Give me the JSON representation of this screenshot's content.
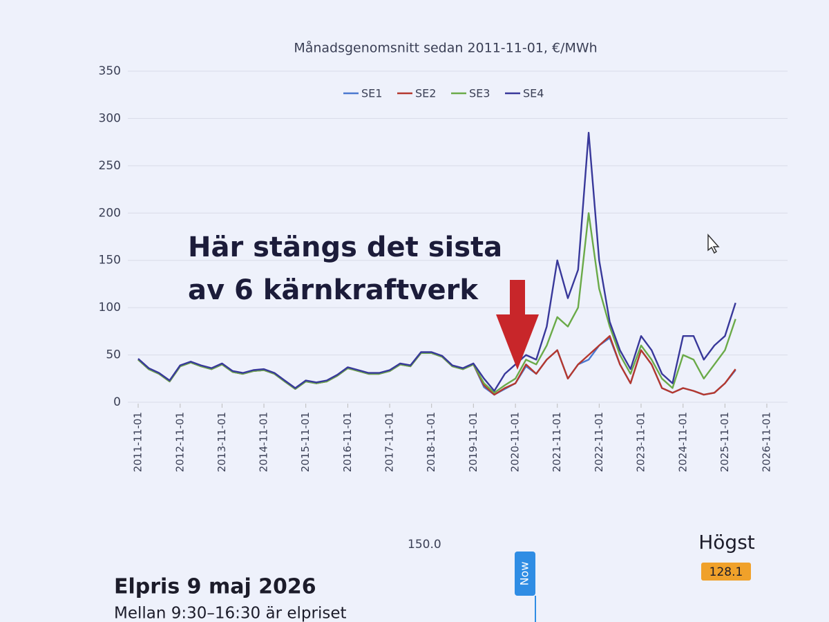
{
  "chart_data": {
    "type": "line",
    "title": "Månadsgenomsnitt sedan 2011-11-01, €/MWh",
    "annotation": [
      "Här stängs det sista",
      "av 6 kärnkraftverk"
    ],
    "x": [
      "2011-11-01",
      "2012-02-01",
      "2012-05-01",
      "2012-08-01",
      "2012-11-01",
      "2013-02-01",
      "2013-05-01",
      "2013-08-01",
      "2013-11-01",
      "2014-02-01",
      "2014-05-01",
      "2014-08-01",
      "2014-11-01",
      "2015-02-01",
      "2015-05-01",
      "2015-08-01",
      "2015-11-01",
      "2016-02-01",
      "2016-05-01",
      "2016-08-01",
      "2016-11-01",
      "2017-02-01",
      "2017-05-01",
      "2017-08-01",
      "2017-11-01",
      "2018-02-01",
      "2018-05-01",
      "2018-08-01",
      "2018-11-01",
      "2019-02-01",
      "2019-05-01",
      "2019-08-01",
      "2019-11-01",
      "2020-02-01",
      "2020-05-01",
      "2020-08-01",
      "2020-11-01",
      "2021-02-01",
      "2021-05-01",
      "2021-08-01",
      "2021-11-01",
      "2022-02-01",
      "2022-05-01",
      "2022-08-01",
      "2022-11-01",
      "2023-02-01",
      "2023-05-01",
      "2023-08-01",
      "2023-11-01",
      "2024-02-01",
      "2024-05-01",
      "2024-08-01",
      "2024-11-01",
      "2025-02-01",
      "2025-05-01",
      "2025-08-01",
      "2025-11-01",
      "2026-02-01"
    ],
    "series": [
      {
        "name": "SE1",
        "color": "#4a78d0",
        "values": [
          45,
          35,
          30,
          22,
          38,
          42,
          38,
          35,
          40,
          32,
          30,
          33,
          34,
          30,
          22,
          14,
          22,
          20,
          22,
          28,
          36,
          33,
          30,
          30,
          33,
          40,
          38,
          52,
          52,
          48,
          38,
          35,
          40,
          16,
          8,
          14,
          20,
          38,
          30,
          45,
          55,
          25,
          40,
          45,
          60,
          68,
          40,
          20,
          55,
          40,
          15,
          10,
          15,
          12,
          8,
          10,
          20,
          34
        ]
      },
      {
        "name": "SE2",
        "color": "#b5382e",
        "values": [
          45,
          35,
          30,
          22,
          38,
          42,
          38,
          35,
          40,
          32,
          30,
          33,
          34,
          30,
          22,
          14,
          22,
          20,
          22,
          28,
          36,
          33,
          30,
          30,
          33,
          40,
          38,
          52,
          52,
          48,
          38,
          35,
          40,
          18,
          8,
          15,
          20,
          40,
          30,
          45,
          55,
          25,
          40,
          50,
          60,
          70,
          40,
          20,
          55,
          40,
          15,
          10,
          15,
          12,
          8,
          10,
          20,
          35
        ]
      },
      {
        "name": "SE3",
        "color": "#6aaa48",
        "values": [
          45,
          35,
          30,
          22,
          38,
          42,
          38,
          35,
          40,
          32,
          30,
          33,
          34,
          30,
          22,
          14,
          22,
          20,
          22,
          28,
          36,
          33,
          30,
          30,
          33,
          40,
          38,
          52,
          52,
          48,
          38,
          35,
          40,
          20,
          10,
          18,
          25,
          45,
          40,
          60,
          90,
          80,
          100,
          200,
          120,
          80,
          50,
          30,
          60,
          45,
          25,
          15,
          50,
          45,
          25,
          40,
          55,
          88
        ]
      },
      {
        "name": "SE4",
        "color": "#38389a",
        "values": [
          46,
          36,
          31,
          23,
          39,
          43,
          39,
          36,
          41,
          33,
          31,
          34,
          35,
          31,
          23,
          15,
          23,
          21,
          23,
          29,
          37,
          34,
          31,
          31,
          34,
          41,
          39,
          53,
          53,
          49,
          39,
          36,
          41,
          25,
          12,
          30,
          40,
          50,
          45,
          80,
          150,
          110,
          140,
          285,
          150,
          85,
          55,
          35,
          70,
          55,
          30,
          20,
          70,
          70,
          45,
          60,
          70,
          105
        ]
      }
    ],
    "xlim": [
      "2011-11-01",
      "2026-11-01"
    ],
    "xticks": [
      "2011-11-01",
      "2012-11-01",
      "2013-11-01",
      "2014-11-01",
      "2015-11-01",
      "2016-11-01",
      "2017-11-01",
      "2018-11-01",
      "2019-11-01",
      "2020-11-01",
      "2021-11-01",
      "2022-11-01",
      "2023-11-01",
      "2024-11-01",
      "2025-11-01",
      "2026-11-01"
    ],
    "ylim": [
      0,
      350
    ],
    "yticks": [
      0,
      50,
      100,
      150,
      200,
      250,
      300,
      350
    ],
    "grid": true
  },
  "lower_panel": {
    "axis_max": "150.0",
    "now_label": "Now",
    "high_label": "Högst",
    "high_value": "128.1",
    "heading": "Elpris 9 maj 2026",
    "text": "Mellan 9:30–16:30 är elpriset"
  }
}
